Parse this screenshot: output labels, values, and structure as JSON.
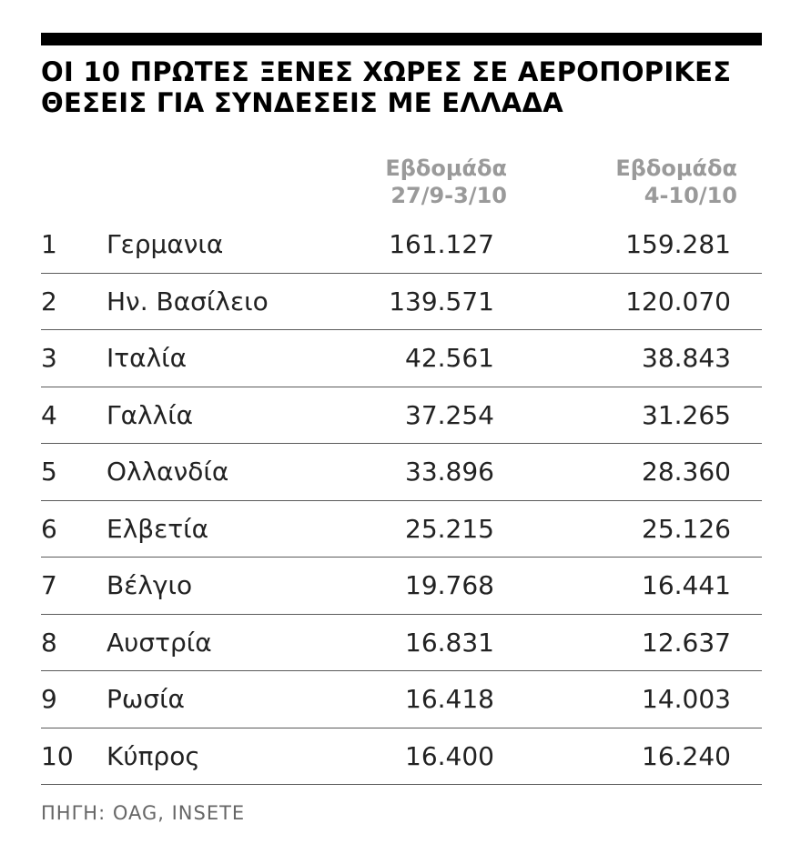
{
  "chart_data": {
    "type": "table",
    "title_lines": [
      "ΟΙ 10 ΠΡΩΤΕΣ ΞΕΝΕΣ ΧΩΡΕΣ ΣΕ ΑΕΡΟΠΟΡΙΚΕΣ",
      "ΘΕΣΕΙΣ ΓΙΑ ΣΥΝΔΕΣΕΙΣ ΜΕ ΕΛΛΑΔΑ"
    ],
    "columns": [
      {
        "label_lines": [
          "Εβδομάδα",
          "27/9-3/10"
        ]
      },
      {
        "label_lines": [
          "Εβδομάδα",
          "4-10/10"
        ]
      }
    ],
    "rows": [
      {
        "rank": "1",
        "country": "Γερμανια",
        "values": [
          "161.127",
          "159.281"
        ]
      },
      {
        "rank": "2",
        "country": "Ην. Βασίλειο",
        "values": [
          "139.571",
          "120.070"
        ]
      },
      {
        "rank": "3",
        "country": "Ιταλία",
        "values": [
          "42.561",
          "38.843"
        ]
      },
      {
        "rank": "4",
        "country": "Γαλλία",
        "values": [
          "37.254",
          "31.265"
        ]
      },
      {
        "rank": "5",
        "country": "Ολλανδία",
        "values": [
          "33.896",
          "28.360"
        ]
      },
      {
        "rank": "6",
        "country": "Ελβετία",
        "values": [
          "25.215",
          "25.126"
        ]
      },
      {
        "rank": "7",
        "country": "Βέλγιο",
        "values": [
          "19.768",
          "16.441"
        ]
      },
      {
        "rank": "8",
        "country": "Αυστρία",
        "values": [
          "16.831",
          "12.637"
        ]
      },
      {
        "rank": "9",
        "country": "Ρωσία",
        "values": [
          "16.418",
          "14.003"
        ]
      },
      {
        "rank": "10",
        "country": "Κύπρος",
        "values": [
          "16.400",
          "16.240"
        ]
      }
    ],
    "source": "ΠΗΓΗ: OAG, INSETE"
  },
  "colors": {
    "rule": "#000000",
    "title": "#000000",
    "column_header": "#9a9a9a",
    "row_text": "#222222",
    "row_divider": "#5a5a5a",
    "source": "#666666"
  }
}
